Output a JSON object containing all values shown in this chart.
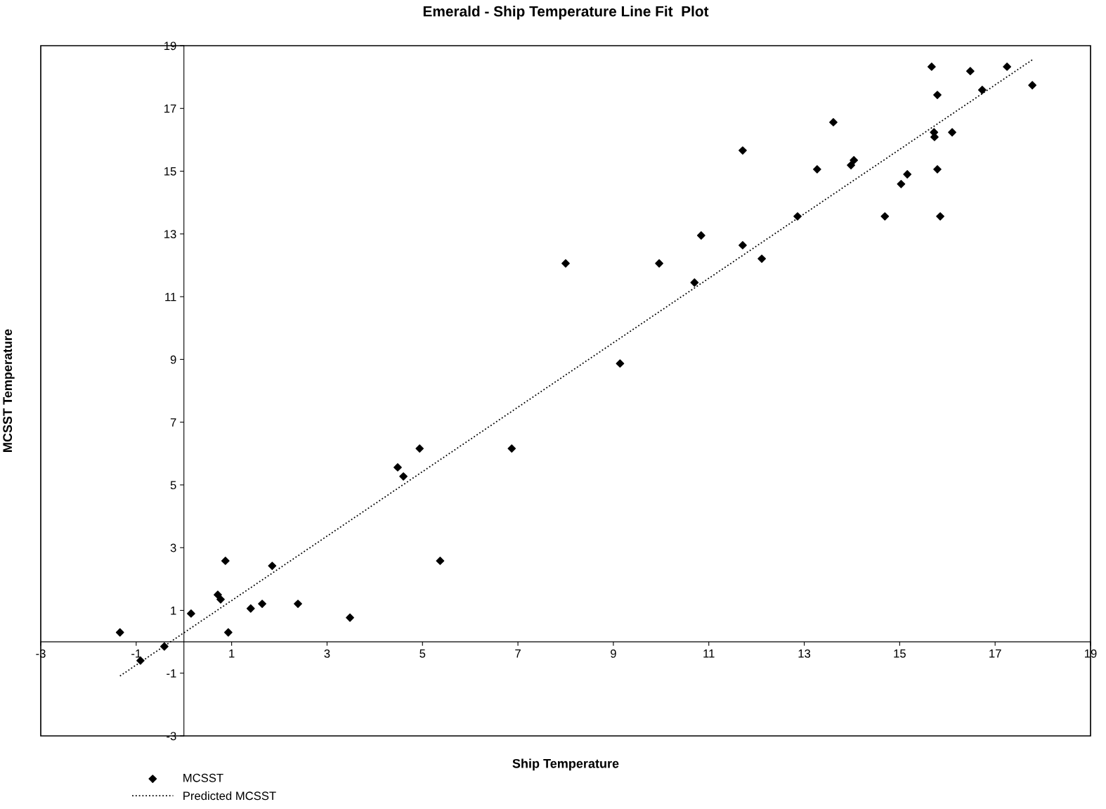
{
  "chart_data": {
    "type": "scatter",
    "title": "Emerald - Ship Temperature Line Fit  Plot",
    "xlabel": "Ship Temperature",
    "ylabel": "MCSST Temperature",
    "xlim": [
      -3,
      19
    ],
    "ylim": [
      -3,
      19
    ],
    "xticks": [
      -3,
      -1,
      1,
      3,
      5,
      7,
      9,
      11,
      13,
      15,
      17,
      19
    ],
    "yticks": [
      -3,
      -1,
      1,
      3,
      5,
      7,
      9,
      11,
      13,
      15,
      17,
      19
    ],
    "grid": false,
    "legend": "bottom left",
    "series": [
      {
        "name": "MCSST",
        "color": "#000000",
        "marker": "diamond",
        "x": [
          -1.34,
          -0.91,
          -0.41,
          0.15,
          0.71,
          0.77,
          0.87,
          0.93,
          1.4,
          1.64,
          1.85,
          2.39,
          3.48,
          4.48,
          4.6,
          4.94,
          5.37,
          6.87,
          8.0,
          9.14,
          9.96,
          10.7,
          10.84,
          11.71,
          11.71,
          12.11,
          12.86,
          13.27,
          13.61,
          13.98,
          14.04,
          14.69,
          15.03,
          15.16,
          15.67,
          15.72,
          15.73,
          15.79,
          15.79,
          15.85,
          16.1,
          16.48,
          16.73,
          17.25,
          17.78
        ],
        "values": [
          0.3,
          -0.6,
          -0.15,
          0.9,
          1.5,
          1.35,
          2.58,
          0.3,
          1.06,
          1.21,
          2.42,
          1.21,
          0.77,
          5.56,
          5.27,
          6.16,
          2.58,
          6.16,
          12.06,
          8.87,
          12.06,
          11.45,
          12.95,
          15.66,
          12.64,
          12.21,
          13.56,
          15.06,
          16.56,
          15.19,
          15.35,
          13.56,
          14.59,
          14.9,
          18.33,
          16.24,
          16.09,
          17.43,
          15.06,
          13.56,
          16.24,
          18.19,
          17.59,
          18.33,
          17.74
        ]
      },
      {
        "name": "Predicted MCSST",
        "type": "line",
        "color": "#000000",
        "line_style": "dotted",
        "marker": "none",
        "x": [
          -1.34,
          17.78
        ],
        "values": [
          -1.09,
          18.55
        ]
      }
    ]
  }
}
